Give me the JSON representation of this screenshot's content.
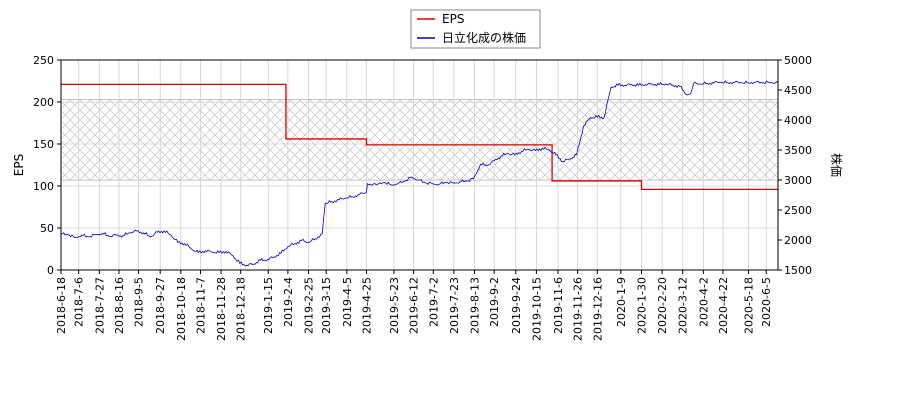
{
  "chart_data": {
    "type": "line",
    "title": "",
    "xlabel": "",
    "ylabel_left": "EPS",
    "ylabel_right": "株価",
    "ylim_left": [
      0,
      250
    ],
    "ylim_right": [
      1500,
      5000
    ],
    "yticks_left": [
      "0",
      "50",
      "100",
      "150",
      "200",
      "250"
    ],
    "yticks_right": [
      "1500",
      "2000",
      "2500",
      "3000",
      "3500",
      "4000",
      "4500",
      "5000"
    ],
    "grid": true,
    "legend_position": "top-center",
    "xlim": [
      "2018-06-18",
      "2020-06-17"
    ],
    "x_tick_labels": [
      "2018-6-18",
      "2018-7-6",
      "2018-7-27",
      "2018-8-16",
      "2018-9-5",
      "2018-9-27",
      "2018-10-18",
      "2018-11-7",
      "2018-11-28",
      "2018-12-18",
      "2019-1-15",
      "2019-2-4",
      "2019-2-25",
      "2019-3-15",
      "2019-4-5",
      "2019-4-25",
      "2019-5-23",
      "2019-6-12",
      "2019-7-2",
      "2019-7-23",
      "2019-8-13",
      "2019-9-2",
      "2019-9-24",
      "2019-10-15",
      "2019-11-6",
      "2019-11-26",
      "2019-12-16",
      "2020-1-9",
      "2020-1-30",
      "2020-2-20",
      "2020-3-12",
      "2020-4-2",
      "2020-4-22",
      "2020-5-18",
      "2020-6-5"
    ],
    "x_tick_dates": [
      "2018-06-18",
      "2018-07-06",
      "2018-07-27",
      "2018-08-16",
      "2018-09-05",
      "2018-09-27",
      "2018-10-18",
      "2018-11-07",
      "2018-11-28",
      "2018-12-18",
      "2019-01-15",
      "2019-02-04",
      "2019-02-25",
      "2019-03-15",
      "2019-04-05",
      "2019-04-25",
      "2019-05-23",
      "2019-06-12",
      "2019-07-02",
      "2019-07-23",
      "2019-08-13",
      "2019-09-02",
      "2019-09-24",
      "2019-10-15",
      "2019-11-06",
      "2019-11-26",
      "2019-12-16",
      "2020-01-09",
      "2020-01-30",
      "2020-02-20",
      "2020-03-12",
      "2020-04-02",
      "2020-04-22",
      "2020-05-18",
      "2020-06-05"
    ],
    "band": {
      "axis": "left",
      "y_from": 107,
      "y_to": 203,
      "pattern": "crosshatch"
    },
    "series": [
      {
        "name": "EPS",
        "axis": "left",
        "color": "#dd0000",
        "style": "step",
        "points": [
          [
            "2018-06-18",
            221
          ],
          [
            "2019-02-02",
            221
          ],
          [
            "2019-02-02",
            156
          ],
          [
            "2019-04-25",
            156
          ],
          [
            "2019-04-25",
            149
          ],
          [
            "2019-10-31",
            149
          ],
          [
            "2019-10-31",
            106
          ],
          [
            "2020-01-30",
            106
          ],
          [
            "2020-01-30",
            96
          ],
          [
            "2020-06-17",
            96
          ]
        ]
      },
      {
        "name": "日立化成の株価",
        "axis": "right",
        "color": "#0000cc",
        "style": "line",
        "points": [
          [
            "2018-06-18",
            2100
          ],
          [
            "2018-06-25",
            2090
          ],
          [
            "2018-07-02",
            2040
          ],
          [
            "2018-07-09",
            2080
          ],
          [
            "2018-07-16",
            2050
          ],
          [
            "2018-07-23",
            2090
          ],
          [
            "2018-07-30",
            2110
          ],
          [
            "2018-08-06",
            2060
          ],
          [
            "2018-08-13",
            2080
          ],
          [
            "2018-08-20",
            2070
          ],
          [
            "2018-08-27",
            2120
          ],
          [
            "2018-09-03",
            2150
          ],
          [
            "2018-09-10",
            2120
          ],
          [
            "2018-09-17",
            2050
          ],
          [
            "2018-09-24",
            2130
          ],
          [
            "2018-10-01",
            2150
          ],
          [
            "2018-10-08",
            2080
          ],
          [
            "2018-10-15",
            1960
          ],
          [
            "2018-10-22",
            1940
          ],
          [
            "2018-10-29",
            1850
          ],
          [
            "2018-11-05",
            1790
          ],
          [
            "2018-11-12",
            1820
          ],
          [
            "2018-11-19",
            1800
          ],
          [
            "2018-11-26",
            1790
          ],
          [
            "2018-12-03",
            1810
          ],
          [
            "2018-12-10",
            1740
          ],
          [
            "2018-12-17",
            1610
          ],
          [
            "2018-12-24",
            1580
          ],
          [
            "2018-12-31",
            1600
          ],
          [
            "2019-01-07",
            1660
          ],
          [
            "2019-01-14",
            1670
          ],
          [
            "2019-01-21",
            1720
          ],
          [
            "2019-01-28",
            1780
          ],
          [
            "2019-02-04",
            1890
          ],
          [
            "2019-02-11",
            1940
          ],
          [
            "2019-02-18",
            1990
          ],
          [
            "2019-02-25",
            1960
          ],
          [
            "2019-03-04",
            2020
          ],
          [
            "2019-03-11",
            2100
          ],
          [
            "2019-03-14",
            2610
          ],
          [
            "2019-03-21",
            2640
          ],
          [
            "2019-03-28",
            2670
          ],
          [
            "2019-04-04",
            2700
          ],
          [
            "2019-04-11",
            2720
          ],
          [
            "2019-04-18",
            2760
          ],
          [
            "2019-04-25",
            2790
          ],
          [
            "2019-04-26",
            2940
          ],
          [
            "2019-05-06",
            2920
          ],
          [
            "2019-05-13",
            2960
          ],
          [
            "2019-05-20",
            2920
          ],
          [
            "2019-05-27",
            2940
          ],
          [
            "2019-06-03",
            2980
          ],
          [
            "2019-06-10",
            3050
          ],
          [
            "2019-06-17",
            3000
          ],
          [
            "2019-06-24",
            2950
          ],
          [
            "2019-07-01",
            2940
          ],
          [
            "2019-07-08",
            2930
          ],
          [
            "2019-07-15",
            2960
          ],
          [
            "2019-07-22",
            2950
          ],
          [
            "2019-07-29",
            2970
          ],
          [
            "2019-08-05",
            2980
          ],
          [
            "2019-08-12",
            3020
          ],
          [
            "2019-08-19",
            3260
          ],
          [
            "2019-08-26",
            3240
          ],
          [
            "2019-09-02",
            3320
          ],
          [
            "2019-09-09",
            3400
          ],
          [
            "2019-09-16",
            3440
          ],
          [
            "2019-09-23",
            3420
          ],
          [
            "2019-09-30",
            3480
          ],
          [
            "2019-10-07",
            3510
          ],
          [
            "2019-10-14",
            3490
          ],
          [
            "2019-10-21",
            3530
          ],
          [
            "2019-10-28",
            3500
          ],
          [
            "2019-11-04",
            3420
          ],
          [
            "2019-11-11",
            3310
          ],
          [
            "2019-11-18",
            3350
          ],
          [
            "2019-11-25",
            3420
          ],
          [
            "2019-12-02",
            3900
          ],
          [
            "2019-12-09",
            4040
          ],
          [
            "2019-12-16",
            4050
          ],
          [
            "2019-12-23",
            4040
          ],
          [
            "2019-12-30",
            4550
          ],
          [
            "2020-01-06",
            4580
          ],
          [
            "2020-01-13",
            4580
          ],
          [
            "2020-01-20",
            4590
          ],
          [
            "2020-01-27",
            4580
          ],
          [
            "2020-02-03",
            4590
          ],
          [
            "2020-02-10",
            4600
          ],
          [
            "2020-02-17",
            4590
          ],
          [
            "2020-02-24",
            4600
          ],
          [
            "2020-03-02",
            4580
          ],
          [
            "2020-03-09",
            4560
          ],
          [
            "2020-03-16",
            4420
          ],
          [
            "2020-03-20",
            4440
          ],
          [
            "2020-03-23",
            4610
          ],
          [
            "2020-03-30",
            4600
          ],
          [
            "2020-04-06",
            4610
          ],
          [
            "2020-04-13",
            4620
          ],
          [
            "2020-04-20",
            4630
          ],
          [
            "2020-04-27",
            4620
          ],
          [
            "2020-05-04",
            4630
          ],
          [
            "2020-05-11",
            4620
          ],
          [
            "2020-05-18",
            4620
          ],
          [
            "2020-05-25",
            4630
          ],
          [
            "2020-06-01",
            4620
          ],
          [
            "2020-06-08",
            4630
          ],
          [
            "2020-06-17",
            4620
          ]
        ]
      }
    ]
  }
}
